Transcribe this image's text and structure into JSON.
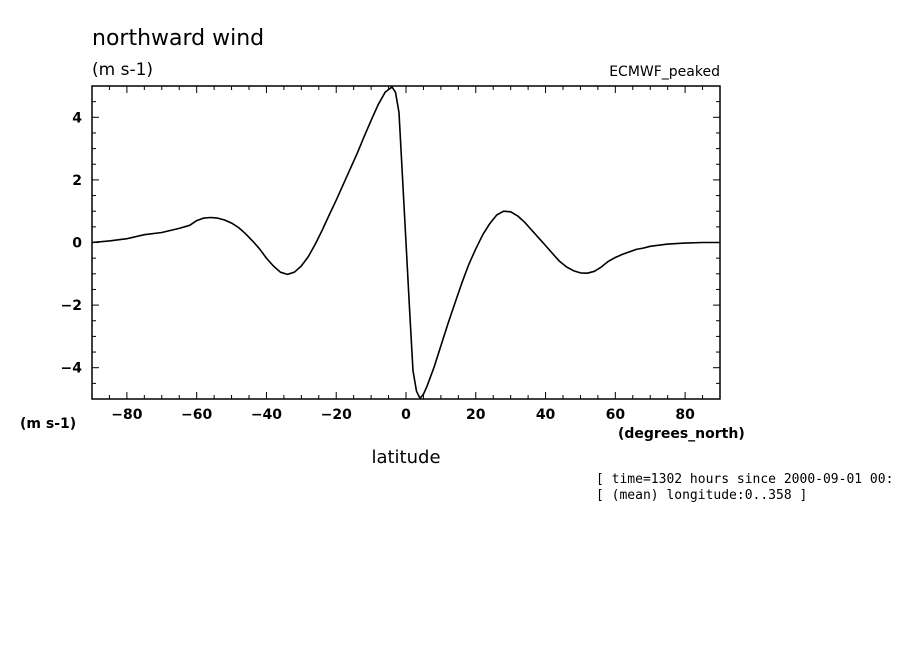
{
  "chart_data": {
    "type": "line",
    "title": "northward wind",
    "units_top": "(m s-1)",
    "dataset_label": "ECMWF_peaked",
    "y_units_label": "(m s-1)",
    "x_units_label": "(degrees_north)",
    "xlabel": "latitude",
    "xlim": [
      -90,
      90
    ],
    "ylim": [
      -5,
      5
    ],
    "x_ticks": [
      -80,
      -60,
      -40,
      -20,
      0,
      20,
      40,
      60,
      80
    ],
    "x_tick_labels": [
      "−80",
      "−60",
      "−40",
      "−20",
      "0",
      "20",
      "40",
      "60",
      "80"
    ],
    "y_ticks": [
      -4,
      -2,
      0,
      2,
      4
    ],
    "y_tick_labels": [
      "−4",
      "−2",
      "0",
      "2",
      "4"
    ],
    "grid": false,
    "annotations": [
      "[ time=1302 hours since 2000-09-01 00:",
      "[ (mean) longitude:0..358 ]"
    ],
    "series": [
      {
        "color": "#000000",
        "x": [
          -90,
          -85,
          -80,
          -75,
          -70,
          -65,
          -62,
          -60,
          -58,
          -56,
          -54,
          -52,
          -50,
          -48,
          -46,
          -44,
          -42,
          -40,
          -38,
          -36,
          -34,
          -32,
          -30,
          -28,
          -26,
          -24,
          -22,
          -20,
          -18,
          -16,
          -14,
          -12,
          -10,
          -8,
          -6,
          -4,
          -3,
          -2,
          0,
          1,
          2,
          3,
          4,
          5,
          6,
          8,
          10,
          12,
          14,
          16,
          18,
          20,
          22,
          24,
          26,
          28,
          30,
          32,
          34,
          36,
          38,
          40,
          42,
          44,
          46,
          48,
          50,
          52,
          54,
          56,
          58,
          60,
          62,
          64,
          66,
          68,
          70,
          75,
          80,
          85,
          90
        ],
        "y": [
          0.0,
          0.05,
          0.12,
          0.25,
          0.32,
          0.45,
          0.55,
          0.7,
          0.78,
          0.8,
          0.78,
          0.72,
          0.62,
          0.48,
          0.28,
          0.05,
          -0.2,
          -0.5,
          -0.75,
          -0.95,
          -1.02,
          -0.95,
          -0.75,
          -0.45,
          -0.05,
          0.4,
          0.88,
          1.35,
          1.85,
          2.35,
          2.85,
          3.38,
          3.9,
          4.4,
          4.8,
          4.97,
          4.8,
          4.15,
          0.0,
          -2.1,
          -4.1,
          -4.75,
          -4.98,
          -4.85,
          -4.6,
          -4.0,
          -3.3,
          -2.6,
          -1.95,
          -1.3,
          -0.7,
          -0.2,
          0.25,
          0.6,
          0.88,
          1.0,
          0.98,
          0.85,
          0.65,
          0.4,
          0.15,
          -0.1,
          -0.35,
          -0.6,
          -0.78,
          -0.9,
          -0.97,
          -0.98,
          -0.92,
          -0.78,
          -0.6,
          -0.48,
          -0.38,
          -0.3,
          -0.22,
          -0.18,
          -0.12,
          -0.05,
          -0.02,
          0.0,
          0.0
        ]
      }
    ]
  }
}
